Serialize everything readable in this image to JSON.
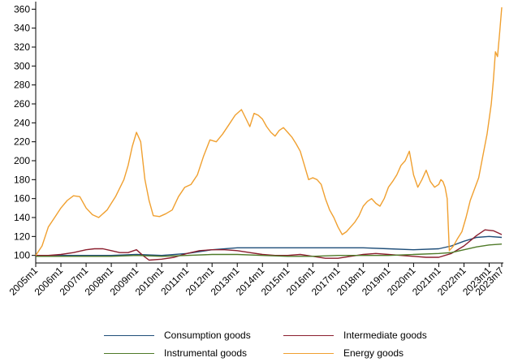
{
  "chart_data": {
    "type": "line",
    "title": "",
    "xlabel": "",
    "ylabel": "",
    "ylim": [
      92,
      368
    ],
    "xlim": [
      0,
      222
    ],
    "y_ticks": [
      100,
      120,
      140,
      160,
      180,
      200,
      220,
      240,
      260,
      280,
      300,
      320,
      340,
      360
    ],
    "x_ticks": [
      "2005m1",
      "2006m1",
      "2007m1",
      "2008m1",
      "2009m1",
      "2010m1",
      "2011m1",
      "2012m1",
      "2013m1",
      "2014m1",
      "2015m1",
      "2016m1",
      "2017m1",
      "2018m1",
      "2019m1",
      "2020m1",
      "2021m1",
      "2022m1",
      "2023m1",
      "2023m7"
    ],
    "grid": false,
    "legend_position": "bottom",
    "series": [
      {
        "name": "Consumption goods",
        "color": "#1f4e79",
        "points": [
          [
            0,
            100
          ],
          [
            12,
            100
          ],
          [
            24,
            100
          ],
          [
            36,
            100
          ],
          [
            48,
            101
          ],
          [
            60,
            100
          ],
          [
            72,
            102
          ],
          [
            84,
            106
          ],
          [
            96,
            108
          ],
          [
            108,
            108
          ],
          [
            120,
            108
          ],
          [
            132,
            108
          ],
          [
            144,
            108
          ],
          [
            156,
            108
          ],
          [
            168,
            107
          ],
          [
            180,
            106
          ],
          [
            192,
            107
          ],
          [
            198,
            110
          ],
          [
            204,
            115
          ],
          [
            210,
            119
          ],
          [
            216,
            120
          ],
          [
            222,
            119
          ]
        ]
      },
      {
        "name": "Intermediate goods",
        "color": "#8b1e2e",
        "points": [
          [
            0,
            100
          ],
          [
            6,
            100
          ],
          [
            12,
            101
          ],
          [
            18,
            103
          ],
          [
            24,
            106
          ],
          [
            28,
            107
          ],
          [
            32,
            107
          ],
          [
            36,
            105
          ],
          [
            40,
            103
          ],
          [
            44,
            103
          ],
          [
            48,
            106
          ],
          [
            51,
            100
          ],
          [
            54,
            95
          ],
          [
            60,
            96
          ],
          [
            66,
            98
          ],
          [
            72,
            102
          ],
          [
            78,
            105
          ],
          [
            84,
            106
          ],
          [
            90,
            106
          ],
          [
            96,
            105
          ],
          [
            102,
            103
          ],
          [
            108,
            101
          ],
          [
            114,
            100
          ],
          [
            120,
            100
          ],
          [
            126,
            101
          ],
          [
            132,
            99
          ],
          [
            138,
            97
          ],
          [
            144,
            97
          ],
          [
            150,
            99
          ],
          [
            156,
            101
          ],
          [
            162,
            102
          ],
          [
            168,
            101
          ],
          [
            174,
            100
          ],
          [
            180,
            99
          ],
          [
            186,
            98
          ],
          [
            192,
            98
          ],
          [
            198,
            102
          ],
          [
            204,
            110
          ],
          [
            210,
            121
          ],
          [
            214,
            127
          ],
          [
            218,
            126
          ],
          [
            222,
            122
          ]
        ]
      },
      {
        "name": "Instrumental goods",
        "color": "#4f7a28",
        "points": [
          [
            0,
            99
          ],
          [
            12,
            99
          ],
          [
            24,
            99
          ],
          [
            36,
            99
          ],
          [
            48,
            100
          ],
          [
            60,
            99
          ],
          [
            72,
            100
          ],
          [
            84,
            101
          ],
          [
            96,
            101
          ],
          [
            108,
            100
          ],
          [
            120,
            99
          ],
          [
            132,
            99
          ],
          [
            144,
            100
          ],
          [
            156,
            100
          ],
          [
            168,
            100
          ],
          [
            180,
            101
          ],
          [
            192,
            102
          ],
          [
            198,
            103
          ],
          [
            204,
            106
          ],
          [
            210,
            109
          ],
          [
            216,
            111
          ],
          [
            222,
            112
          ]
        ]
      },
      {
        "name": "Energy goods",
        "color": "#f0a030",
        "points": [
          [
            0,
            100
          ],
          [
            3,
            110
          ],
          [
            6,
            130
          ],
          [
            9,
            140
          ],
          [
            12,
            150
          ],
          [
            15,
            158
          ],
          [
            18,
            163
          ],
          [
            21,
            162
          ],
          [
            24,
            150
          ],
          [
            27,
            143
          ],
          [
            30,
            140
          ],
          [
            34,
            148
          ],
          [
            38,
            162
          ],
          [
            42,
            180
          ],
          [
            44,
            195
          ],
          [
            46,
            215
          ],
          [
            48,
            230
          ],
          [
            50,
            220
          ],
          [
            52,
            180
          ],
          [
            54,
            158
          ],
          [
            56,
            142
          ],
          [
            59,
            141
          ],
          [
            62,
            144
          ],
          [
            65,
            148
          ],
          [
            68,
            162
          ],
          [
            71,
            172
          ],
          [
            74,
            175
          ],
          [
            77,
            185
          ],
          [
            80,
            205
          ],
          [
            83,
            222
          ],
          [
            86,
            220
          ],
          [
            89,
            228
          ],
          [
            92,
            238
          ],
          [
            95,
            248
          ],
          [
            98,
            254
          ],
          [
            100,
            245
          ],
          [
            102,
            236
          ],
          [
            104,
            250
          ],
          [
            106,
            248
          ],
          [
            108,
            244
          ],
          [
            110,
            236
          ],
          [
            112,
            230
          ],
          [
            114,
            226
          ],
          [
            116,
            232
          ],
          [
            118,
            235
          ],
          [
            120,
            230
          ],
          [
            122,
            225
          ],
          [
            124,
            218
          ],
          [
            126,
            210
          ],
          [
            128,
            195
          ],
          [
            130,
            180
          ],
          [
            132,
            182
          ],
          [
            134,
            180
          ],
          [
            136,
            175
          ],
          [
            138,
            160
          ],
          [
            140,
            148
          ],
          [
            142,
            140
          ],
          [
            144,
            130
          ],
          [
            146,
            122
          ],
          [
            148,
            125
          ],
          [
            150,
            130
          ],
          [
            152,
            135
          ],
          [
            154,
            142
          ],
          [
            156,
            152
          ],
          [
            158,
            157
          ],
          [
            160,
            160
          ],
          [
            162,
            155
          ],
          [
            164,
            152
          ],
          [
            166,
            160
          ],
          [
            168,
            172
          ],
          [
            170,
            178
          ],
          [
            172,
            185
          ],
          [
            174,
            195
          ],
          [
            176,
            200
          ],
          [
            178,
            210
          ],
          [
            180,
            185
          ],
          [
            182,
            172
          ],
          [
            184,
            180
          ],
          [
            186,
            190
          ],
          [
            188,
            178
          ],
          [
            190,
            172
          ],
          [
            192,
            175
          ],
          [
            193,
            180
          ],
          [
            194,
            178
          ],
          [
            195,
            172
          ],
          [
            196,
            160
          ],
          [
            197,
            105
          ],
          [
            199,
            110
          ],
          [
            201,
            118
          ],
          [
            203,
            125
          ],
          [
            205,
            140
          ],
          [
            207,
            158
          ],
          [
            209,
            170
          ],
          [
            211,
            182
          ],
          [
            213,
            205
          ],
          [
            215,
            228
          ],
          [
            217,
            260
          ],
          [
            218,
            285
          ],
          [
            219,
            315
          ],
          [
            220,
            310
          ],
          [
            221,
            335
          ],
          [
            222,
            362
          ]
        ]
      }
    ]
  }
}
